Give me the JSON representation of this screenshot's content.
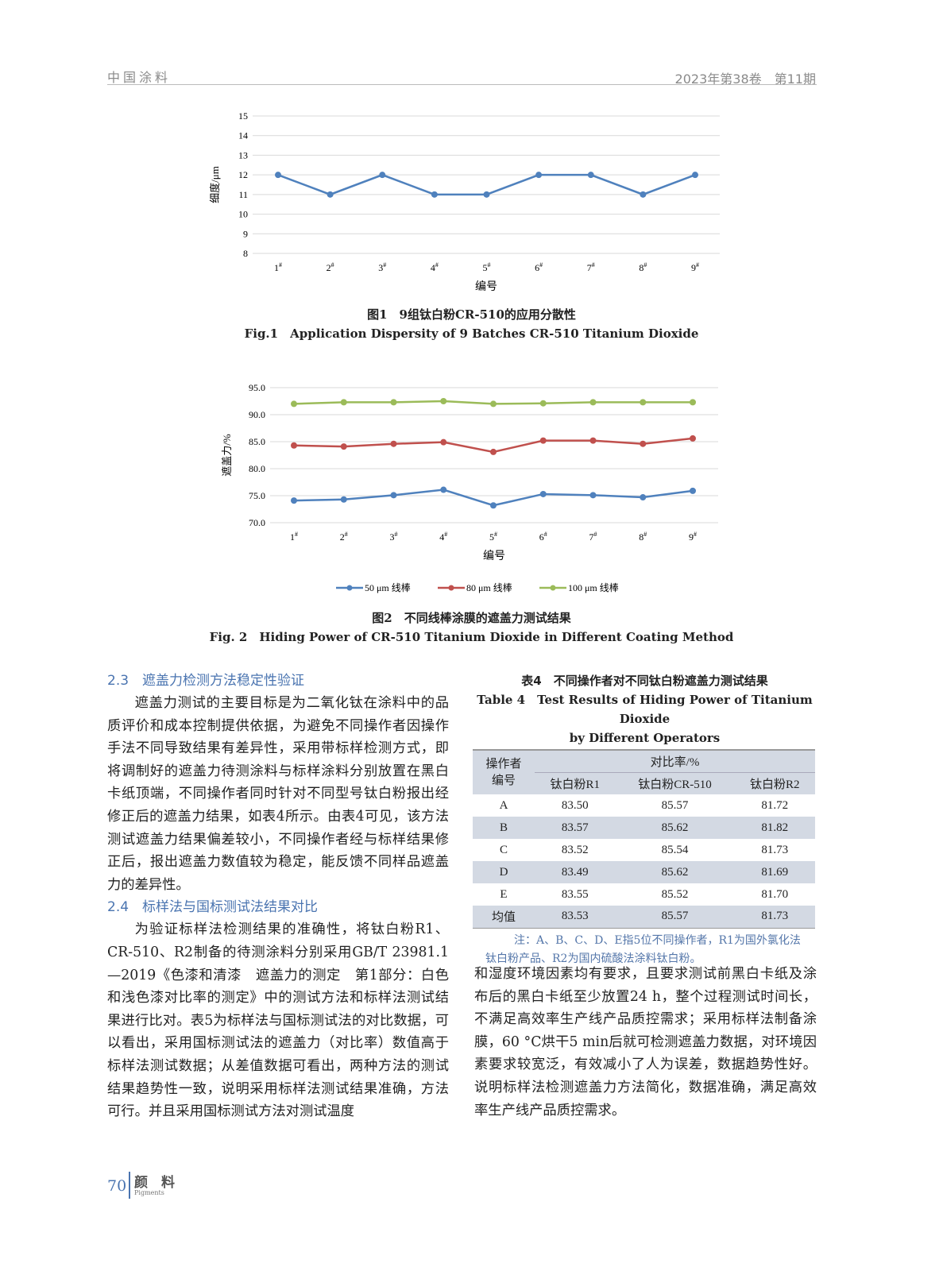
{
  "header": {
    "journal": "中国涂料",
    "issue": "2023年第38卷　第11期"
  },
  "figure1": {
    "caption_cn": "图1　9组钛白粉CR-510的应用分散性",
    "caption_en": "Fig.1　Application Dispersity of 9 Batches CR-510 Titanium Dioxide"
  },
  "figure2": {
    "caption_cn": "图2　不同线棒涂膜的遮盖力测试结果",
    "caption_en": "Fig. 2　Hiding Power of CR-510 Titanium Dioxide in Different Coating Method"
  },
  "chart_data": [
    {
      "type": "line",
      "xlabel": "编号",
      "ylabel": "细度/μm",
      "categories": [
        "1#",
        "2#",
        "3#",
        "4#",
        "5#",
        "6#",
        "7#",
        "8#",
        "9#"
      ],
      "ylim": [
        8,
        15
      ],
      "yticks": [
        "8",
        "9",
        "10",
        "11",
        "12",
        "13",
        "14",
        "15"
      ],
      "grid": true,
      "series": [
        {
          "values": [
            12,
            11,
            12,
            11,
            11,
            12,
            12,
            11,
            12
          ],
          "color": "#4f81bd"
        }
      ]
    },
    {
      "type": "line",
      "xlabel": "编号",
      "ylabel": "遮盖力/%",
      "categories": [
        "1#",
        "2#",
        "3#",
        "4#",
        "5#",
        "6#",
        "7#",
        "8#",
        "9#"
      ],
      "ylim": [
        70,
        95
      ],
      "yticks": [
        "70.0",
        "75.0",
        "80.0",
        "85.0",
        "90.0",
        "95.0"
      ],
      "grid": true,
      "legend": "bottom",
      "series": [
        {
          "name": "50 μm 线棒",
          "values": [
            74.1,
            74.3,
            75.1,
            76.1,
            73.2,
            75.3,
            75.1,
            74.7,
            75.9
          ],
          "color": "#4f81bd"
        },
        {
          "name": "80 μm 线棒",
          "values": [
            84.3,
            84.1,
            84.6,
            84.9,
            83.1,
            85.2,
            85.2,
            84.6,
            85.6
          ],
          "color": "#c0504d"
        },
        {
          "name": "100 μm 线棒",
          "values": [
            92.0,
            92.3,
            92.3,
            92.5,
            92.0,
            92.1,
            92.3,
            92.3,
            92.3
          ],
          "color": "#9bbb59"
        }
      ]
    }
  ],
  "left": {
    "sec23": "2.3　遮盖力检测方法稳定性验证",
    "p1": "遮盖力测试的主要目标是为二氧化钛在涂料中的品质评价和成本控制提供依据，为避免不同操作者因操作手法不同导致结果有差异性，采用带标样检测方式，即将调制好的遮盖力待测涂料与标样涂料分别放置在黑白卡纸顶端，不同操作者同时针对不同型号钛白粉报出经修正后的遮盖力结果，如表4所示。由表4可见，该方法测试遮盖力结果偏差较小，不同操作者经与标样结果修正后，报出遮盖力数值较为稳定，能反馈不同样品遮盖力的差异性。",
    "sec24": "2.4　标样法与国标测试法结果对比",
    "p2": "为验证标样法检测结果的准确性，将钛白粉R1、CR-510、R2制备的待测涂料分别采用GB/T 23981.1—2019《色漆和清漆　遮盖力的测定　第1部分：白色和浅色漆对比率的测定》中的测试方法和标样法测试结果进行比对。表5为标样法与国标测试法的对比数据，可以看出，采用国标测试法的遮盖力（对比率）数值高于标样法测试数据；从差值数据可看出，两种方法的测试结果趋势性一致，说明采用标样法测试结果准确，方法可行。并且采用国标测试方法对测试温度"
  },
  "table4": {
    "title_cn": "表4　不同操作者对不同钛白粉遮盖力测试结果",
    "title_en1": "Table 4　Test Results of Hiding Power of Titanium Dioxide",
    "title_en2": "by Different Operators",
    "h_op1": "操作者",
    "h_op2": "编号",
    "h_group": "对比率/%",
    "cols": [
      "钛白粉R1",
      "钛白粉CR-510",
      "钛白粉R2"
    ],
    "rows": [
      [
        "A",
        "83.50",
        "85.57",
        "81.72"
      ],
      [
        "B",
        "83.57",
        "85.62",
        "81.82"
      ],
      [
        "C",
        "83.52",
        "85.54",
        "81.73"
      ],
      [
        "D",
        "83.49",
        "85.62",
        "81.69"
      ],
      [
        "E",
        "83.55",
        "85.52",
        "81.70"
      ],
      [
        "均值",
        "83.53",
        "85.57",
        "81.73"
      ]
    ],
    "note1": "注：A、B、C、D、E指5位不同操作者，R1为国外氯化法",
    "note2": "钛白粉产品、R2为国内硫酸法涂料钛白粉。"
  },
  "right": {
    "p": "和湿度环境因素均有要求，且要求测试前黑白卡纸及涂布后的黑白卡纸至少放置24 h，整个过程测试时间长，不满足高效率生产线产品质控需求；采用标样法制备涂膜，60 °C烘干5 min后就可检测遮盖力数据，对环境因素要求较宽泛，有效减小了人为误差，数据趋势性好。说明标样法检测遮盖力方法简化，数据准确，满足高效率生产线产品质控需求。"
  },
  "footer": {
    "page": "70",
    "journal_cn": "颜　料",
    "journal_en": "Pigments"
  }
}
